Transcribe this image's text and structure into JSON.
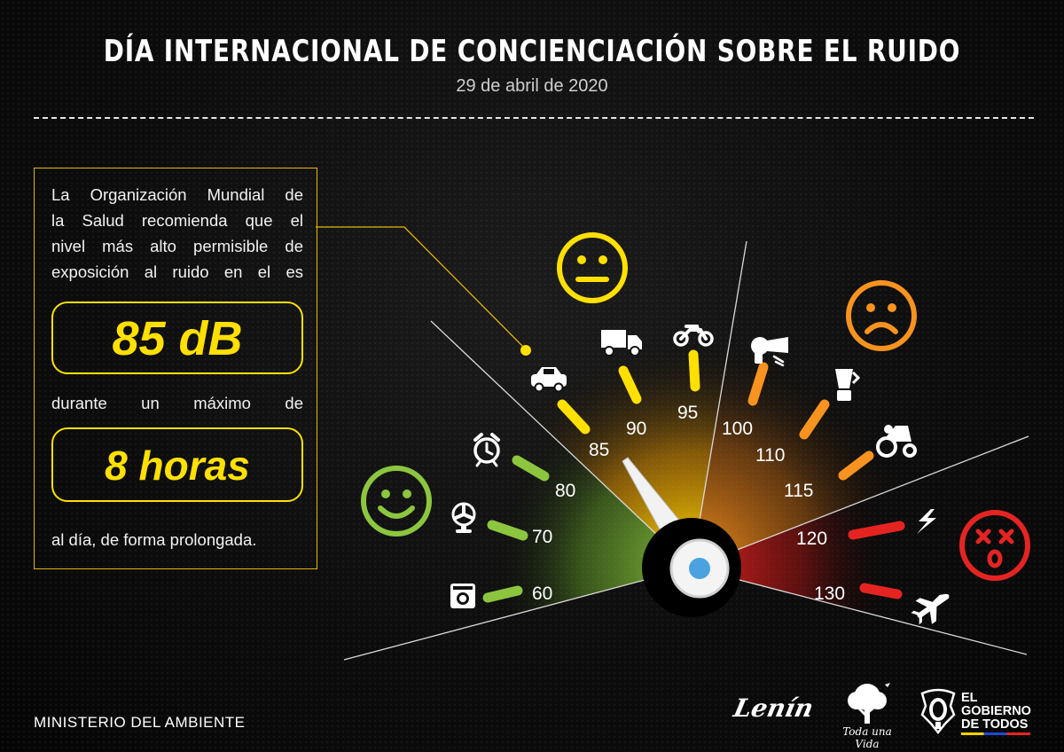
{
  "header": {
    "title": "DÍA INTERNACIONAL DE CONCIENCIACIÓN SOBRE EL RUIDO",
    "date": "29 de abril de 2020"
  },
  "info": {
    "line1": "La Organización Mundial de",
    "line2": "la Salud recomienda que el",
    "line3": "nivel más alto permisible de",
    "line4": "exposición al ruido en el es",
    "level": "85 dB",
    "line5": "durante un máximo de",
    "duration": "8 horas",
    "line6": "al día, de forma prolongada."
  },
  "gauge": {
    "pointer_db": 85,
    "marks": [
      {
        "label": "60",
        "db": 60,
        "color": "#8cc63f",
        "icon": "washing-machine-icon"
      },
      {
        "label": "70",
        "db": 70,
        "color": "#8cc63f",
        "icon": "fan-icon"
      },
      {
        "label": "80",
        "db": 80,
        "color": "#8cc63f",
        "icon": "alarm-clock-icon"
      },
      {
        "label": "85",
        "db": 85,
        "color": "#ffe000",
        "icon": "car-icon"
      },
      {
        "label": "90",
        "db": 90,
        "color": "#ffe000",
        "icon": "truck-icon"
      },
      {
        "label": "95",
        "db": 95,
        "color": "#ffe000",
        "icon": "motorcycle-icon"
      },
      {
        "label": "100",
        "db": 100,
        "color": "#f7931e",
        "icon": "hair-dryer-icon"
      },
      {
        "label": "110",
        "db": 110,
        "color": "#f7931e",
        "icon": "blender-icon"
      },
      {
        "label": "115",
        "db": 115,
        "color": "#f7931e",
        "icon": "tractor-icon"
      },
      {
        "label": "120",
        "db": 120,
        "color": "#e52421",
        "icon": "thunder-icon"
      },
      {
        "label": "130",
        "db": 130,
        "color": "#e52421",
        "icon": "airplane-icon"
      }
    ],
    "faces": [
      {
        "mood": "happy",
        "color": "#8cc63f",
        "icon": "happy-face-icon"
      },
      {
        "mood": "neutral",
        "color": "#ffe000",
        "icon": "neutral-face-icon"
      },
      {
        "mood": "sad",
        "color": "#f7931e",
        "icon": "sad-face-icon"
      },
      {
        "mood": "dizzy",
        "color": "#e52421",
        "icon": "dizzy-face-icon"
      }
    ]
  },
  "footer": {
    "ministry": "MINISTERIO DEL AMBIENTE",
    "lenin": "Lenín",
    "toda": "Toda una Vida",
    "gob1": "EL",
    "gob2": "GOBIERNO",
    "gob3": "DE TODOS"
  },
  "colors": {
    "accent": "#ffe000",
    "box_border": "#e6b800",
    "green": "#8cc63f",
    "orange": "#f7931e",
    "red": "#e52421",
    "hub_blue": "#4aa3df"
  }
}
